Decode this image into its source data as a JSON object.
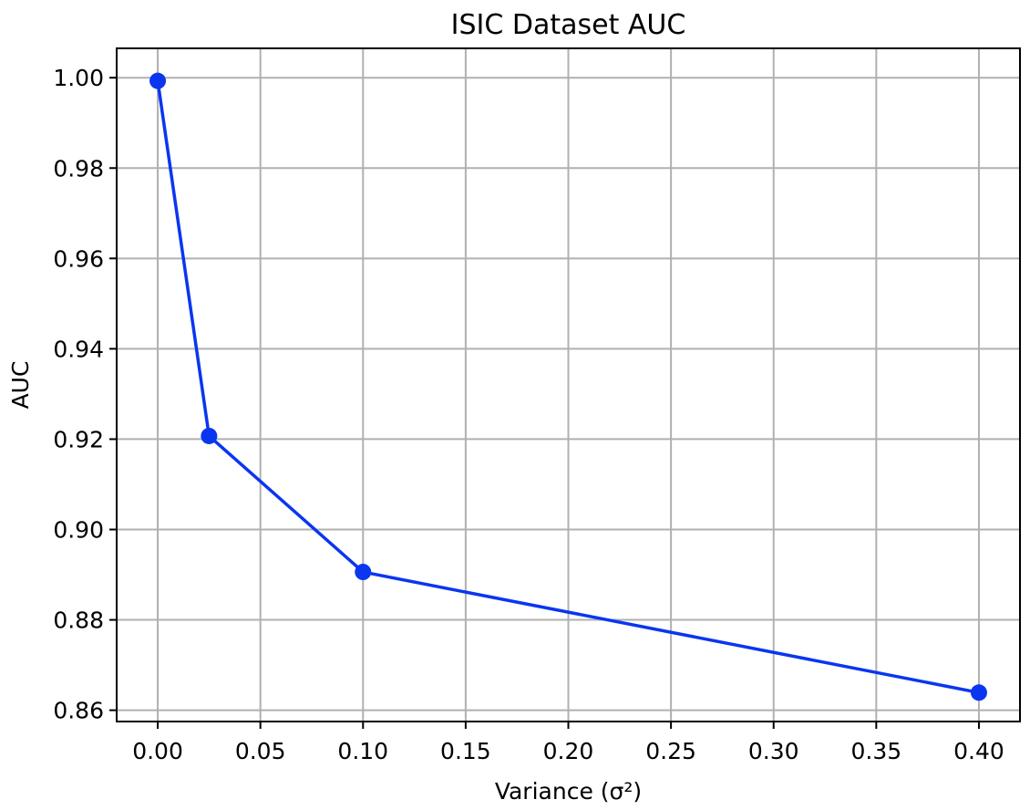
{
  "chart_data": {
    "type": "line",
    "title": "ISIC Dataset AUC",
    "xlabel": "Variance (σ²)",
    "ylabel": "AUC",
    "xlim": [
      -0.02,
      0.42
    ],
    "ylim": [
      0.8575,
      1.0065
    ],
    "grid": true,
    "x_ticks": [
      0.0,
      0.05,
      0.1,
      0.15,
      0.2,
      0.25,
      0.3,
      0.35,
      0.4
    ],
    "x_tick_labels": [
      "0.00",
      "0.05",
      "0.10",
      "0.15",
      "0.20",
      "0.25",
      "0.30",
      "0.35",
      "0.40"
    ],
    "y_ticks": [
      0.86,
      0.88,
      0.9,
      0.92,
      0.94,
      0.96,
      0.98,
      1.0
    ],
    "y_tick_labels": [
      "0.86",
      "0.88",
      "0.90",
      "0.92",
      "0.94",
      "0.96",
      "0.98",
      "1.00"
    ],
    "series": [
      {
        "color": "#0a36f0",
        "marker": "circle",
        "x": [
          0.0,
          0.025,
          0.1,
          0.4
        ],
        "y": [
          0.9993,
          0.9207,
          0.8906,
          0.8639
        ]
      }
    ]
  }
}
